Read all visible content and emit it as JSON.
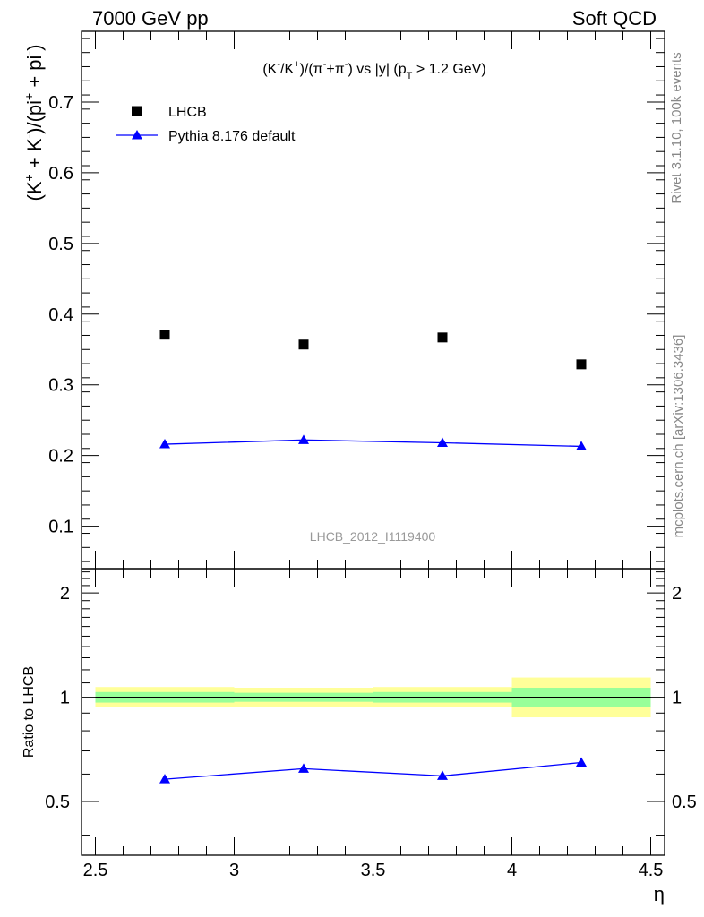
{
  "header": {
    "left": "7000 GeV pp",
    "right": "Soft QCD"
  },
  "side_labels": {
    "rivet": "Rivet 3.1.10,  100k events",
    "mcplots": "mcplots.cern.ch [arXiv:1306.3436]"
  },
  "chart_data": [
    {
      "type": "scatter",
      "title": {
        "a": "(K",
        "a_sup": "-",
        "b": "/K",
        "b_sup": "+",
        "c": ")/(π",
        "c_sup": "-",
        "d": "+π",
        "d_sup": "-",
        "e": ") vs |y| (p",
        "e_sub": "T",
        "f": " > 1.2 GeV)"
      },
      "ylabel": {
        "a": "(K",
        "a_sup": "+",
        "b": " + K",
        "b_sup": "-",
        "c": ")/(pi",
        "c_sup": "+",
        "d": " + pi",
        "d_sup": "-",
        "e": ")"
      },
      "analysis_label": "LHCB_2012_I1119400",
      "xlim": [
        2.45,
        4.55
      ],
      "ylim": [
        0.04,
        0.8
      ],
      "yticks": [
        0.1,
        0.2,
        0.3,
        0.4,
        0.5,
        0.6,
        0.7
      ],
      "ytick_labels": [
        "0.1",
        "0.2",
        "0.3",
        "0.4",
        "0.5",
        "0.6",
        "0.7"
      ],
      "legend_position": "top-left",
      "series": [
        {
          "name": "LHCB",
          "style": "data-points",
          "color": "#000000",
          "x": [
            2.75,
            3.25,
            3.75,
            4.25
          ],
          "y": [
            0.371,
            0.357,
            0.367,
            0.329
          ],
          "xerr": [
            0.25,
            0.25,
            0.25,
            0.25
          ]
        },
        {
          "name": "Pythia 8.176 default",
          "style": "line-markers",
          "color": "#0000ff",
          "x": [
            2.75,
            3.25,
            3.75,
            4.25
          ],
          "y": [
            0.216,
            0.222,
            0.218,
            0.213
          ],
          "xerr": [
            0.25,
            0.25,
            0.25,
            0.25
          ]
        }
      ]
    },
    {
      "type": "line",
      "ylabel": "Ratio to LHCB",
      "xlabel": "η",
      "xlim": [
        2.45,
        4.55
      ],
      "ylim": [
        0.35,
        2.35
      ],
      "yscale": "log",
      "yticks": [
        0.5,
        1,
        2
      ],
      "ytick_labels": [
        "0.5",
        "1",
        "2"
      ],
      "xticks": [
        2.5,
        3,
        3.5,
        4,
        4.5
      ],
      "xtick_labels": [
        "2.5",
        "3",
        "3.5",
        "4",
        "4.5"
      ],
      "reference_line": 1,
      "uncertainty_bands": [
        {
          "x0": 2.5,
          "x1": 3.0,
          "stat_lo": 0.965,
          "stat_hi": 1.035,
          "tot_lo": 0.935,
          "tot_hi": 1.07
        },
        {
          "x0": 3.0,
          "x1": 3.5,
          "stat_lo": 0.97,
          "stat_hi": 1.03,
          "tot_lo": 0.94,
          "tot_hi": 1.065
        },
        {
          "x0": 3.5,
          "x1": 4.0,
          "stat_lo": 0.965,
          "stat_hi": 1.035,
          "tot_lo": 0.935,
          "tot_hi": 1.07
        },
        {
          "x0": 4.0,
          "x1": 4.5,
          "stat_lo": 0.935,
          "stat_hi": 1.065,
          "tot_lo": 0.875,
          "tot_hi": 1.14
        }
      ],
      "band_colors": {
        "stat": "#99ff99",
        "total": "#ffff99"
      },
      "series": [
        {
          "name": "Pythia 8.176 default",
          "color": "#0000ff",
          "x": [
            2.75,
            3.25,
            3.75,
            4.25
          ],
          "y": [
            0.58,
            0.622,
            0.593,
            0.648
          ],
          "yerr": [
            0.006,
            0.007,
            0.006,
            0.015
          ]
        }
      ]
    }
  ]
}
